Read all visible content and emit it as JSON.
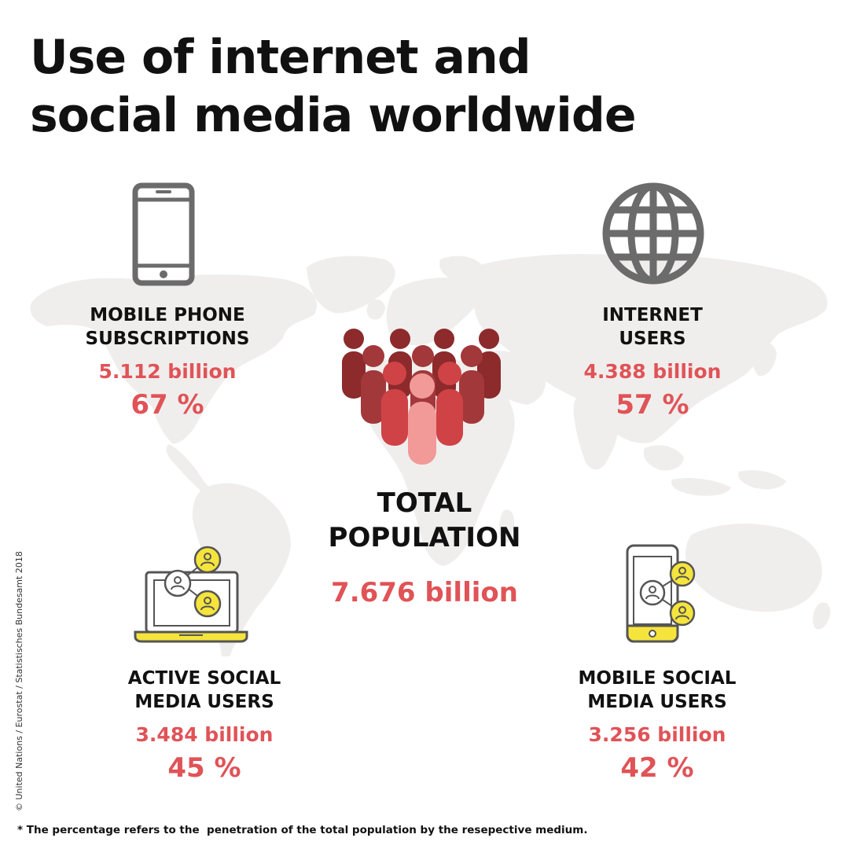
{
  "title": {
    "line1": "Use of internet and",
    "line2": "social media worldwide"
  },
  "stats": {
    "mobile_phone": {
      "label_line1": "MOBILE PHONE",
      "label_line2": "SUBSCRIPTIONS",
      "amount": "5.112 billion",
      "percent": "67 %"
    },
    "internet": {
      "label_line1": "INTERNET",
      "label_line2": "USERS",
      "amount": "4.388 billion",
      "percent": "57 %"
    },
    "total_population": {
      "label_line1": "TOTAL",
      "label_line2": "POPULATION",
      "amount": "7.676 billion"
    },
    "active_social": {
      "label_line1": "ACTIVE SOCIAL",
      "label_line2": "MEDIA USERS",
      "amount": "3.484 billion",
      "percent": "45 %"
    },
    "mobile_social": {
      "label_line1": "MOBILE SOCIAL",
      "label_line2": "MEDIA USERS",
      "amount": "3.256 billion",
      "percent": "42 %"
    }
  },
  "colors": {
    "accent_red": "#e05357",
    "map_gray": "#efeeed",
    "icon_gray": "#6b6b6b",
    "yellow": "#f5e43c",
    "people_dark": "#8c2a2c",
    "people_mid": "#b23a3c",
    "people_light": "#e05357",
    "people_pale": "#f19a98"
  },
  "icons": {
    "mobile_phone": "smartphone-icon",
    "internet": "globe-icon",
    "total_population": "people-crowd-icon",
    "active_social": "laptop-social-network-icon",
    "mobile_social": "phone-social-network-icon"
  },
  "copyright": "© United Nations / Eurostat / Statistisches Bundesamt 2018",
  "footnote": "* The percentage refers to the  penetration of the total population by the resepective medium."
}
